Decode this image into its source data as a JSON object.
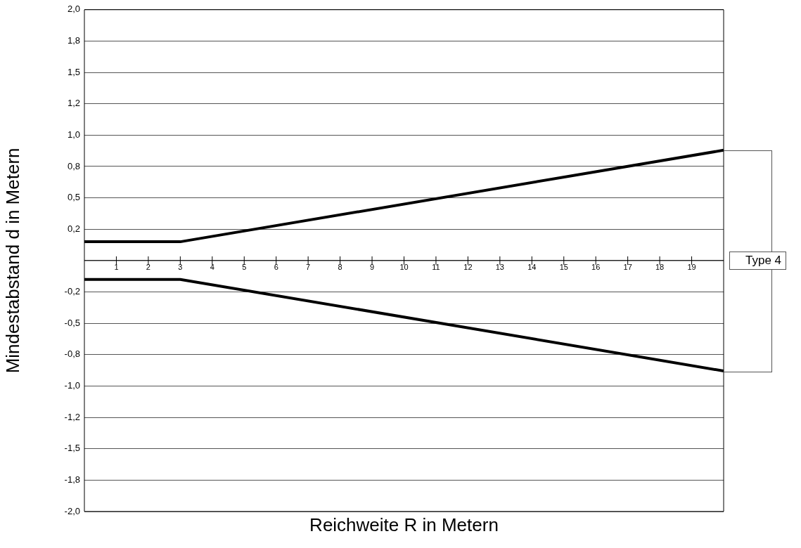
{
  "chart_data": {
    "type": "line",
    "xlabel": "Reichweite R in Metern",
    "ylabel": "Mindestabstand d in Metern",
    "x": [
      0,
      3,
      20
    ],
    "series": [
      {
        "color": "#000000",
        "values": [
          0.15,
          0.15,
          0.88
        ]
      },
      {
        "color": "#000000",
        "values": [
          -0.15,
          -0.15,
          -0.88
        ]
      }
    ],
    "xlim": [
      0,
      20
    ],
    "xticks": [
      1,
      2,
      3,
      4,
      5,
      6,
      7,
      8,
      9,
      10,
      11,
      12,
      13,
      14,
      15,
      16,
      17,
      18,
      19
    ],
    "ylim": [
      -2,
      2
    ],
    "yticks": [
      {
        "value": -2,
        "label": "-2,0"
      },
      {
        "value": -1.75,
        "label": "-1,8"
      },
      {
        "value": -1.5,
        "label": "-1,5"
      },
      {
        "value": -1.25,
        "label": "-1,2"
      },
      {
        "value": -1,
        "label": "-1,0"
      },
      {
        "value": -0.75,
        "label": "-0,8"
      },
      {
        "value": -0.5,
        "label": "-0,5"
      },
      {
        "value": -0.25,
        "label": "-0,2"
      },
      {
        "value": 0,
        "label": null
      },
      {
        "value": 0.25,
        "label": "0,2"
      },
      {
        "value": 0.5,
        "label": "0,5"
      },
      {
        "value": 0.75,
        "label": "0,8"
      },
      {
        "value": 1,
        "label": "1,0"
      },
      {
        "value": 1.25,
        "label": "1,2"
      },
      {
        "value": 1.5,
        "label": "1,5"
      },
      {
        "value": 1.75,
        "label": "1,8"
      },
      {
        "value": 2,
        "label": "2,0"
      }
    ],
    "grid": "y",
    "legend": false,
    "marker": "none",
    "line_style": "solid",
    "annotations": [
      "Type 4"
    ]
  }
}
